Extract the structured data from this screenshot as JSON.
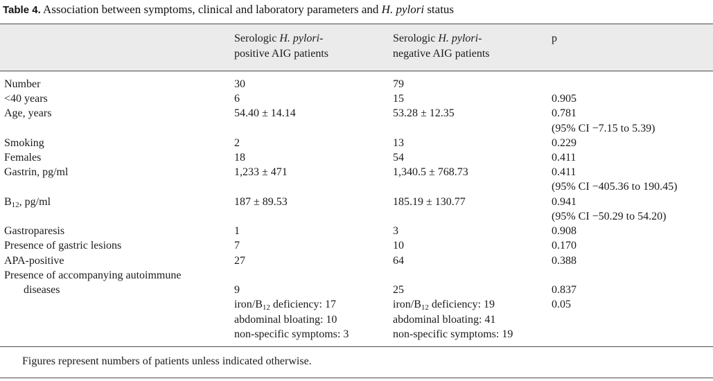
{
  "caption": {
    "label": "Table 4.",
    "text_before": " Association between symptoms, clinical and laboratory parameters and ",
    "italic": "H. pylori",
    "text_after": " status"
  },
  "header": {
    "col1": {
      "line1_prefix": "Serologic ",
      "line1_italic": "H. pylori",
      "line1_suffix": "-",
      "line2": "positive AIG patients"
    },
    "col2": {
      "line1_prefix": "Serologic ",
      "line1_italic": "H. pylori",
      "line1_suffix": "-",
      "line2": "negative AIG patients"
    },
    "col3": "p"
  },
  "rows": {
    "number": {
      "label": "Number",
      "pos": "30",
      "neg": "79",
      "p": ""
    },
    "under40": {
      "label": "<40 years",
      "pos": "6",
      "neg": "15",
      "p": "0.905"
    },
    "age": {
      "label": "Age, years",
      "pos": "54.40 ± 14.14",
      "neg": "53.28 ± 12.35",
      "p": "0.781",
      "p_ci": "(95% CI −7.15 to 5.39)"
    },
    "smoking": {
      "label": "Smoking",
      "pos": "2",
      "neg": "13",
      "p": "0.229"
    },
    "females": {
      "label": "Females",
      "pos": "18",
      "neg": "54",
      "p": "0.411"
    },
    "gastrin": {
      "label": "Gastrin, pg/ml",
      "pos": "1,233 ± 471",
      "neg": "1,340.5 ± 768.73",
      "p": "0.411",
      "p_ci": "(95% CI −405.36 to 190.45)"
    },
    "b12": {
      "label_base": "B",
      "label_sub": "12",
      "label_rest": ", pg/ml",
      "pos": "187 ± 89.53",
      "neg": "185.19 ± 130.77",
      "p": "0.941",
      "p_ci": "(95% CI −50.29 to 54.20)"
    },
    "gastroparesis": {
      "label": "Gastroparesis",
      "pos": "1",
      "neg": "3",
      "p": "0.908"
    },
    "lesions": {
      "label": "Presence of gastric lesions",
      "pos": "7",
      "neg": "10",
      "p": "0.170"
    },
    "apa": {
      "label": "APA-positive",
      "pos": "27",
      "neg": "64",
      "p": "0.388"
    },
    "autoimmune": {
      "label_line1": "Presence of accompanying autoimmune",
      "label_line2": "diseases",
      "pos": "9",
      "neg": "25",
      "p": "0.837"
    },
    "iron": {
      "pos_prefix": "iron/B",
      "pos_sub": "12",
      "pos_rest": " deficiency: 17",
      "neg_prefix": "iron/B",
      "neg_sub": "12",
      "neg_rest": " deficiency: 19",
      "p": "0.05"
    },
    "bloating": {
      "pos": "abdominal bloating: 10",
      "neg": "abdominal bloating: 41"
    },
    "nonspecific": {
      "pos": "non-specific symptoms: 3",
      "neg": "non-specific symptoms: 19"
    }
  },
  "footnote": "Figures represent numbers of patients unless indicated otherwise."
}
